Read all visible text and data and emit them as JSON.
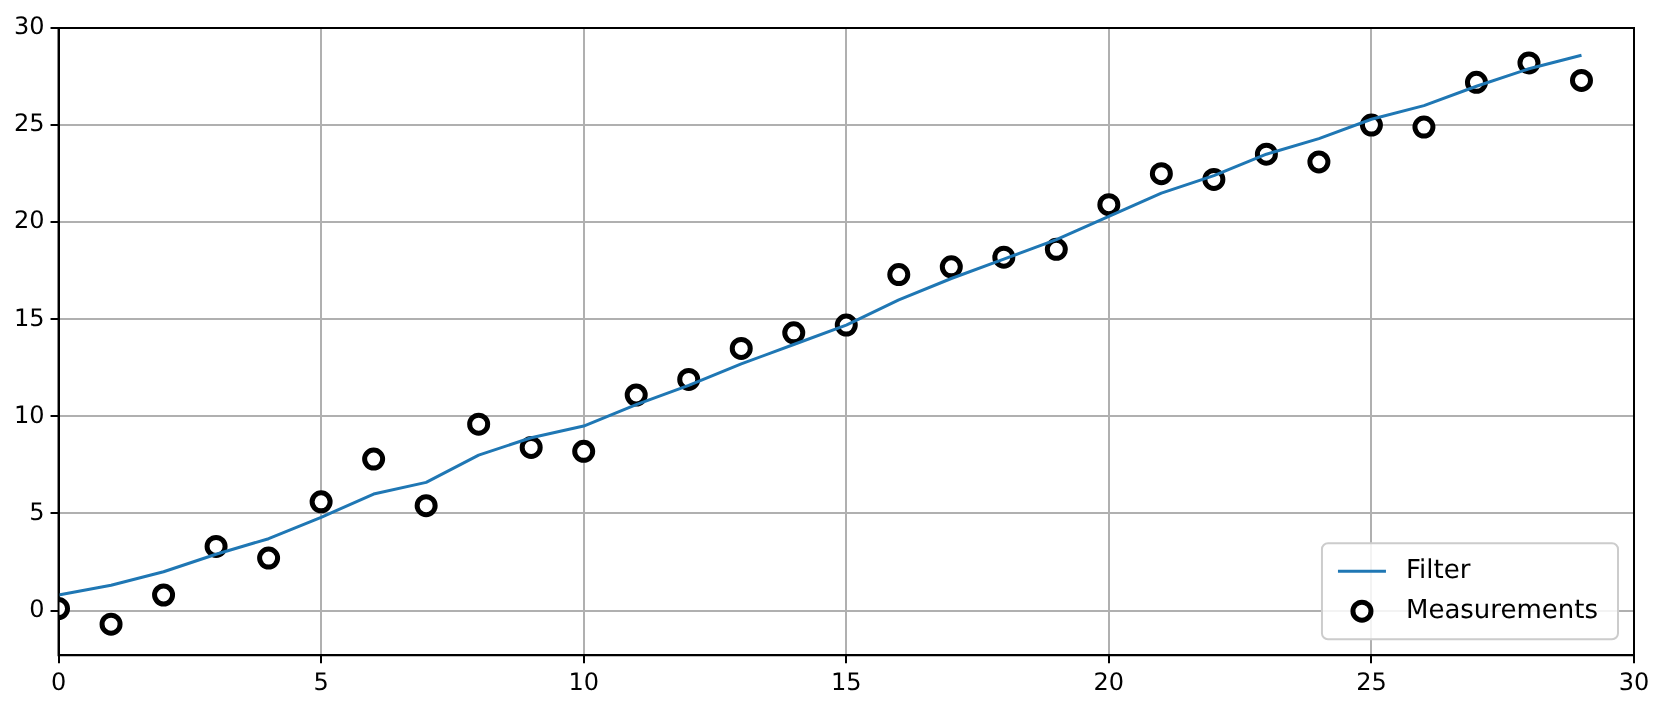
{
  "chart_data": {
    "type": "line",
    "x": [
      0,
      1,
      2,
      3,
      4,
      5,
      6,
      7,
      8,
      9,
      10,
      11,
      12,
      13,
      14,
      15,
      16,
      17,
      18,
      19,
      20,
      21,
      22,
      23,
      24,
      25,
      26,
      27,
      28,
      29
    ],
    "series": [
      {
        "name": "Filter",
        "color": "#1f77b4",
        "marker": "none",
        "line_style": "solid",
        "values": [
          0.8,
          1.3,
          2.0,
          2.9,
          3.7,
          4.8,
          6.0,
          6.6,
          8.0,
          8.9,
          9.5,
          10.6,
          11.6,
          12.7,
          13.7,
          14.7,
          16.0,
          17.1,
          18.1,
          19.1,
          20.3,
          21.5,
          22.4,
          23.5,
          24.3,
          25.3,
          26.0,
          27.0,
          27.9,
          28.6
        ]
      },
      {
        "name": "Measurements",
        "type": "scatter",
        "color": "#000000",
        "marker": "circle",
        "values": [
          0.1,
          -0.7,
          0.8,
          3.3,
          2.7,
          5.6,
          7.8,
          5.4,
          9.6,
          8.4,
          8.2,
          11.1,
          11.9,
          13.5,
          14.3,
          14.7,
          17.3,
          17.7,
          18.2,
          18.6,
          20.9,
          22.5,
          22.2,
          23.5,
          23.1,
          25.0,
          24.9,
          27.2,
          28.2,
          27.3
        ]
      }
    ],
    "xlim": [
      0,
      30
    ],
    "xticks": [
      0,
      5,
      10,
      15,
      20,
      25,
      30
    ],
    "ylim": [
      -2.3,
      30
    ],
    "yticks": [
      0,
      5,
      10,
      15,
      20,
      25,
      30
    ],
    "grid": true,
    "legend": "bottom right"
  }
}
